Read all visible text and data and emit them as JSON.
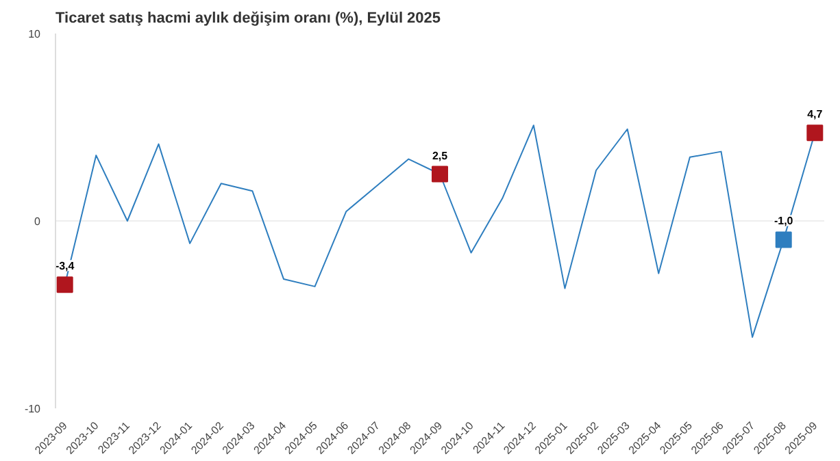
{
  "chart_data": {
    "type": "line",
    "title": "Ticaret satış hacmi aylık değişim oranı (%), Eylül 2025",
    "categories": [
      "2023-09",
      "2023-10",
      "2023-11",
      "2023-12",
      "2024-01",
      "2024-02",
      "2024-03",
      "2024-04",
      "2024-05",
      "2024-06",
      "2024-07",
      "2024-08",
      "2024-09",
      "2024-10",
      "2024-11",
      "2024-12",
      "2025-01",
      "2025-02",
      "2025-03",
      "2025-04",
      "2025-05",
      "2025-06",
      "2025-07",
      "2025-08",
      "2025-09"
    ],
    "series": [
      {
        "color": "#2e7ebf",
        "values": [
          -3.4,
          3.5,
          0.0,
          4.1,
          -1.2,
          2.0,
          1.6,
          -3.1,
          -3.5,
          0.5,
          1.9,
          3.3,
          2.5,
          -1.7,
          1.2,
          5.1,
          -3.6,
          2.7,
          4.9,
          -2.8,
          3.4,
          3.7,
          -6.2,
          -1.0,
          4.7
        ]
      },
      {
        "type": "scatter",
        "marker": "square",
        "colors": [
          "#b0161e",
          null,
          null,
          null,
          null,
          null,
          null,
          null,
          null,
          null,
          null,
          null,
          "#b0161e",
          null,
          null,
          null,
          null,
          null,
          null,
          null,
          null,
          null,
          null,
          "#2e7ebf",
          "#b0161e"
        ],
        "values": [
          -3.4,
          null,
          null,
          null,
          null,
          null,
          null,
          null,
          null,
          null,
          null,
          null,
          2.5,
          null,
          null,
          null,
          null,
          null,
          null,
          null,
          null,
          null,
          null,
          -1.0,
          4.7
        ],
        "value_labels": [
          "-3,4",
          null,
          null,
          null,
          null,
          null,
          null,
          null,
          null,
          null,
          null,
          null,
          "2,5",
          null,
          null,
          null,
          null,
          null,
          null,
          null,
          null,
          null,
          null,
          "-1,0",
          "4,7"
        ]
      }
    ],
    "ylim": [
      -10,
      10
    ],
    "yticks": [
      -10,
      0,
      10
    ],
    "grid": "y"
  }
}
